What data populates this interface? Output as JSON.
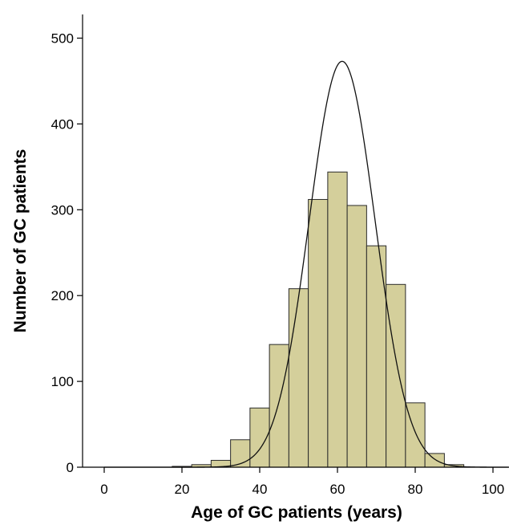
{
  "chart_data": {
    "type": "bar",
    "subtype": "histogram",
    "title": "",
    "xlabel": "Age of GC patients (years)",
    "ylabel": "Number of GC patients",
    "xlim": [
      -5,
      105
    ],
    "ylim": [
      0,
      525
    ],
    "bar_color": "#d4cf9b",
    "bin_width": 5,
    "bins": [
      {
        "start": 17.5,
        "end": 22.5,
        "count": 1
      },
      {
        "start": 22.5,
        "end": 27.5,
        "count": 3
      },
      {
        "start": 27.5,
        "end": 32.5,
        "count": 8
      },
      {
        "start": 32.5,
        "end": 37.5,
        "count": 32
      },
      {
        "start": 37.5,
        "end": 42.5,
        "count": 69
      },
      {
        "start": 42.5,
        "end": 47.5,
        "count": 143
      },
      {
        "start": 47.5,
        "end": 52.5,
        "count": 208
      },
      {
        "start": 52.5,
        "end": 57.5,
        "count": 312
      },
      {
        "start": 57.5,
        "end": 62.5,
        "count": 344
      },
      {
        "start": 62.5,
        "end": 67.5,
        "count": 305
      },
      {
        "start": 67.5,
        "end": 72.5,
        "count": 258
      },
      {
        "start": 72.5,
        "end": 77.5,
        "count": 213
      },
      {
        "start": 77.5,
        "end": 82.5,
        "count": 75
      },
      {
        "start": 82.5,
        "end": 87.5,
        "count": 16
      },
      {
        "start": 87.5,
        "end": 92.5,
        "count": 3
      }
    ],
    "normal_curve": {
      "mean": 61.2,
      "sd": 8.5,
      "peak": 473
    },
    "x_ticks": [
      "0",
      "20",
      "40",
      "60",
      "80",
      "100"
    ],
    "y_ticks": [
      "0",
      "100",
      "200",
      "300",
      "400",
      "500"
    ],
    "grid": false,
    "legend": "none"
  }
}
